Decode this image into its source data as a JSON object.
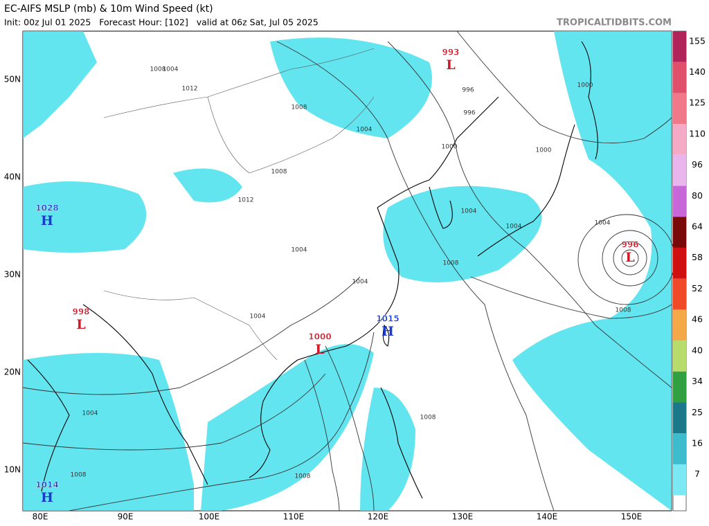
{
  "header": {
    "title": "EC-AIFS MSLP (mb) & 10m Wind Speed (kt)",
    "subtitle": "Init: 00z Jul 01 2025   Forecast Hour: [102]   valid at 06z Sat, Jul 05 2025",
    "site": "TROPICALTIDBITS.COM"
  },
  "map": {
    "lat_labels": [
      "50N",
      "40N",
      "30N",
      "20N",
      "10N"
    ],
    "lon_labels": [
      "80E",
      "90E",
      "100E",
      "110E",
      "120E",
      "130E",
      "140E",
      "150E"
    ],
    "pressure_centers": [
      {
        "letter": "L",
        "value": 993
      },
      {
        "letter": "L",
        "value": 996
      },
      {
        "letter": "L",
        "value": 998
      },
      {
        "letter": "L",
        "value": 1000
      },
      {
        "letter": "H",
        "value": 1015
      },
      {
        "letter": "H",
        "value": 1028
      },
      {
        "letter": "H",
        "value": 1014
      }
    ],
    "isobar_labels": [
      1004,
      1008,
      1012,
      1008,
      1004,
      996,
      996,
      1000,
      1000,
      1000,
      1004,
      1004,
      1004,
      1008,
      1008,
      1004,
      1008,
      1008,
      1008,
      1008,
      1012,
      1004,
      1004,
      1004
    ]
  },
  "colorbar": {
    "levels": [
      {
        "label": 155,
        "color": "#b0245a"
      },
      {
        "label": 140,
        "color": "#e0506a"
      },
      {
        "label": 125,
        "color": "#f07888"
      },
      {
        "label": 110,
        "color": "#f4aac4"
      },
      {
        "label": 96,
        "color": "#eab4ec"
      },
      {
        "label": 80,
        "color": "#c868d8"
      },
      {
        "label": 64,
        "color": "#7a0a0a"
      },
      {
        "label": 58,
        "color": "#d01010"
      },
      {
        "label": 52,
        "color": "#f04a28"
      },
      {
        "label": 46,
        "color": "#f4a848"
      },
      {
        "label": 40,
        "color": "#b8dc6c"
      },
      {
        "label": 34,
        "color": "#30a040"
      },
      {
        "label": 25,
        "color": "#1a7888"
      },
      {
        "label": 16,
        "color": "#3cbccc"
      },
      {
        "label": 7,
        "color": "#7ce8f4"
      }
    ]
  }
}
